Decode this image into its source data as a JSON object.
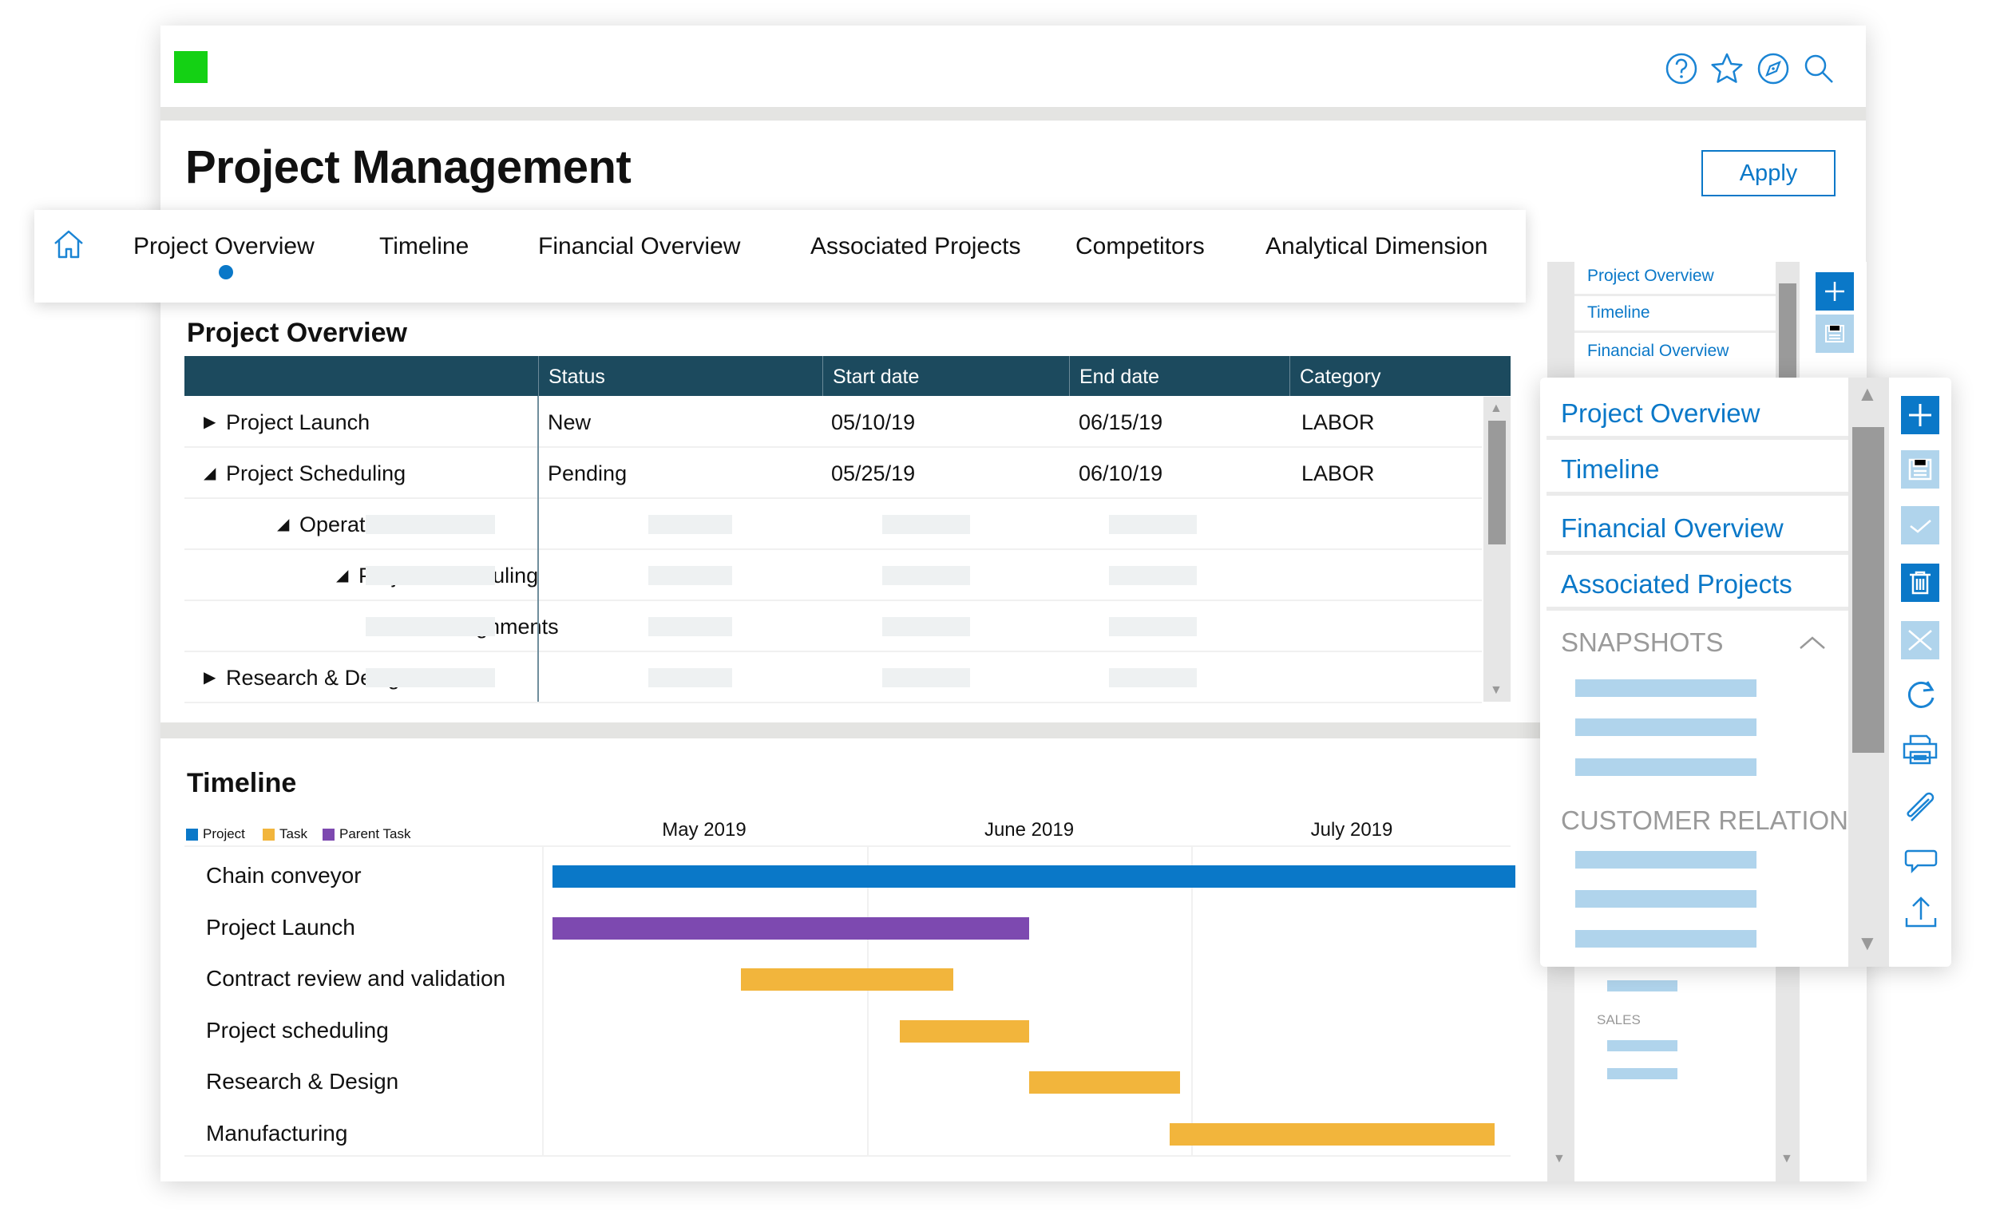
{
  "app": {
    "title": "Project Management",
    "apply_label": "Apply",
    "brand_color": "#14d114",
    "accent": "#0a78c8"
  },
  "header_icons": [
    "help-icon",
    "star-icon",
    "compass-icon",
    "search-icon"
  ],
  "tabs": [
    {
      "label": "Project Overview",
      "active": true
    },
    {
      "label": "Timeline"
    },
    {
      "label": "Financial Overview"
    },
    {
      "label": "Associated Projects"
    },
    {
      "label": "Competitors"
    },
    {
      "label": "Analytical Dimension"
    }
  ],
  "overview": {
    "title": "Project Overview",
    "columns": [
      "",
      "Status",
      "Start date",
      "End date",
      "Category"
    ],
    "rows": [
      {
        "name": "Project Launch",
        "toggle": "collapsed",
        "status": "New",
        "start": "05/10/19",
        "end": "06/15/19",
        "category": "LABOR"
      },
      {
        "name": "Project Scheduling",
        "toggle": "expanded",
        "status": "Pending",
        "start": "05/25/19",
        "end": "06/10/19",
        "category": "LABOR"
      },
      {
        "name": "Operations",
        "toggle": "expanded"
      },
      {
        "name": "Project Scheduling",
        "toggle": "expanded"
      },
      {
        "name": "Assignments",
        "toggle": "collapsed"
      },
      {
        "name": "Research & Design",
        "toggle": "collapsed"
      }
    ]
  },
  "timeline": {
    "title": "Timeline",
    "legend": [
      {
        "label": "Project",
        "color": "#0a78c8"
      },
      {
        "label": "Task",
        "color": "#f2b53c"
      },
      {
        "label": "Parent Task",
        "color": "#7d49b0"
      }
    ],
    "months": [
      "May 2019",
      "June 2019",
      "July 2019"
    ],
    "rows": [
      {
        "label": "Chain conveyor",
        "type": "Project",
        "start": "2019-05-02",
        "end": "2019-07-31"
      },
      {
        "label": "Project Launch",
        "type": "Parent Task",
        "start": "2019-05-02",
        "end": "2019-06-15"
      },
      {
        "label": "Contract review and validation",
        "type": "Task",
        "start": "2019-05-20",
        "end": "2019-06-08"
      },
      {
        "label": "Project scheduling",
        "type": "Task",
        "start": "2019-06-04",
        "end": "2019-06-15"
      },
      {
        "label": "Research & Design",
        "type": "Task",
        "start": "2019-06-16",
        "end": "2019-06-29"
      },
      {
        "label": "Manufacturing",
        "type": "Task",
        "start": "2019-06-29",
        "end": "2019-07-29"
      }
    ]
  },
  "back_panel": {
    "items": [
      "Project Overview",
      "Timeline",
      "Financial Overview"
    ],
    "sales_label": "SALES"
  },
  "side_panel": {
    "items": [
      "Project Overview",
      "Timeline",
      "Financial Overview",
      "Associated Projects"
    ],
    "snapshots_label": "SNAPSHOTS",
    "customer_relation_label": "CUSTOMER RELATION",
    "toolbar": [
      "add-icon",
      "save-icon",
      "check-icon",
      "delete-icon",
      "close-icon",
      "refresh-icon",
      "print-icon",
      "attach-icon",
      "comment-icon",
      "upload-icon"
    ]
  }
}
